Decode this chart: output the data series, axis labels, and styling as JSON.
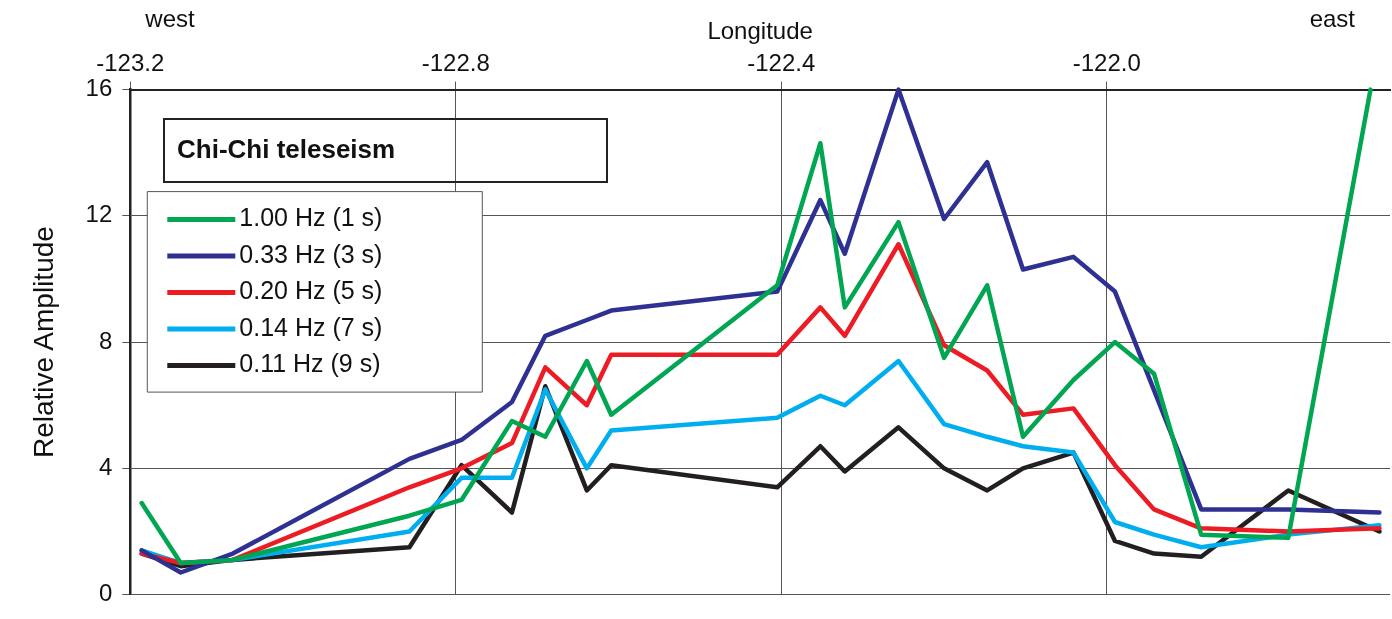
{
  "chart_data": {
    "type": "line",
    "title": "Chi-Chi teleseism",
    "xlabel": "Longitude",
    "ylabel": "Relative Amplitude",
    "annotations": [
      "west",
      "east"
    ],
    "xlim": [
      -123.2,
      -121.652
    ],
    "xticks": [
      {
        "value": -123.2,
        "label": "-123.2"
      },
      {
        "value": -122.8,
        "label": "-122.8"
      },
      {
        "value": -122.4,
        "label": "-122.4"
      },
      {
        "value": -122.0,
        "label": "-122.0"
      }
    ],
    "ylim": [
      0,
      16
    ],
    "yticks": [
      0,
      4,
      8,
      12,
      16
    ],
    "grid": true,
    "legend": "top left",
    "marker": "none",
    "line_style": "solid",
    "series": [
      {
        "name": "1.00 Hz (1 s)",
        "color": "#00a651",
        "x": [
          -123.186,
          -123.138,
          -123.074,
          -122.857,
          -122.793,
          -122.731,
          -122.69,
          -122.639,
          -122.609,
          -122.405,
          -122.352,
          -122.322,
          -122.256,
          -122.2,
          -122.147,
          -122.103,
          -122.041,
          -121.99,
          -121.942,
          -121.884,
          -121.777,
          -121.676
        ],
        "values": [
          2.9,
          1.0,
          1.1,
          2.5,
          3.0,
          5.5,
          5.0,
          7.4,
          5.7,
          9.8,
          14.3,
          9.1,
          11.8,
          7.5,
          9.8,
          5.0,
          6.8,
          8.0,
          7.0,
          1.9,
          1.8,
          16
        ]
      },
      {
        "name": "0.33 Hz (3 s)",
        "color": "#2e3192",
        "x": [
          -123.186,
          -123.138,
          -123.074,
          -122.857,
          -122.793,
          -122.731,
          -122.69,
          -122.639,
          -122.609,
          -122.405,
          -122.352,
          -122.322,
          -122.256,
          -122.2,
          -122.147,
          -122.103,
          -122.041,
          -121.99,
          -121.884,
          -121.777,
          -121.665
        ],
        "values": [
          1.4,
          0.7,
          1.3,
          4.3,
          4.9,
          6.1,
          8.2,
          8.7,
          9.0,
          9.6,
          12.5,
          10.8,
          16.0,
          11.9,
          13.7,
          10.3,
          10.7,
          9.6,
          2.7,
          2.7,
          2.6
        ]
      },
      {
        "name": "0.20 Hz (5 s)",
        "color": "#ed1c24",
        "x": [
          -123.186,
          -123.138,
          -123.074,
          -122.857,
          -122.793,
          -122.731,
          -122.69,
          -122.639,
          -122.609,
          -122.405,
          -122.352,
          -122.322,
          -122.256,
          -122.2,
          -122.147,
          -122.103,
          -122.041,
          -121.99,
          -121.942,
          -121.884,
          -121.777,
          -121.665
        ],
        "values": [
          1.3,
          1.0,
          1.1,
          3.4,
          4.0,
          4.8,
          7.2,
          6.0,
          7.6,
          7.6,
          9.1,
          8.2,
          11.1,
          7.9,
          7.1,
          5.7,
          5.9,
          4.1,
          2.7,
          2.1,
          2.0,
          2.1
        ]
      },
      {
        "name": "0.14 Hz (7 s)",
        "color": "#00aeef",
        "x": [
          -123.186,
          -123.138,
          -123.074,
          -122.857,
          -122.793,
          -122.731,
          -122.69,
          -122.639,
          -122.609,
          -122.405,
          -122.352,
          -122.322,
          -122.256,
          -122.2,
          -122.147,
          -122.103,
          -122.041,
          -121.99,
          -121.942,
          -121.884,
          -121.777,
          -121.665
        ],
        "values": [
          1.4,
          1.0,
          1.1,
          2.0,
          3.7,
          3.7,
          6.5,
          4.0,
          5.2,
          5.6,
          6.3,
          6.0,
          7.4,
          5.4,
          5.0,
          4.7,
          4.5,
          2.3,
          1.9,
          1.5,
          1.9,
          2.2
        ]
      },
      {
        "name": "0.11 Hz (9 s)",
        "color": "#231f20",
        "x": [
          -123.186,
          -123.138,
          -123.074,
          -122.857,
          -122.793,
          -122.731,
          -122.69,
          -122.639,
          -122.609,
          -122.405,
          -122.352,
          -122.322,
          -122.256,
          -122.2,
          -122.147,
          -122.103,
          -122.041,
          -121.99,
          -121.942,
          -121.884,
          -121.777,
          -121.665
        ],
        "values": [
          1.3,
          0.9,
          1.1,
          1.5,
          4.1,
          2.6,
          6.6,
          3.3,
          4.1,
          3.4,
          4.7,
          3.9,
          5.3,
          4.0,
          3.3,
          4.0,
          4.5,
          1.7,
          1.3,
          1.2,
          3.3,
          2.0
        ]
      }
    ]
  }
}
